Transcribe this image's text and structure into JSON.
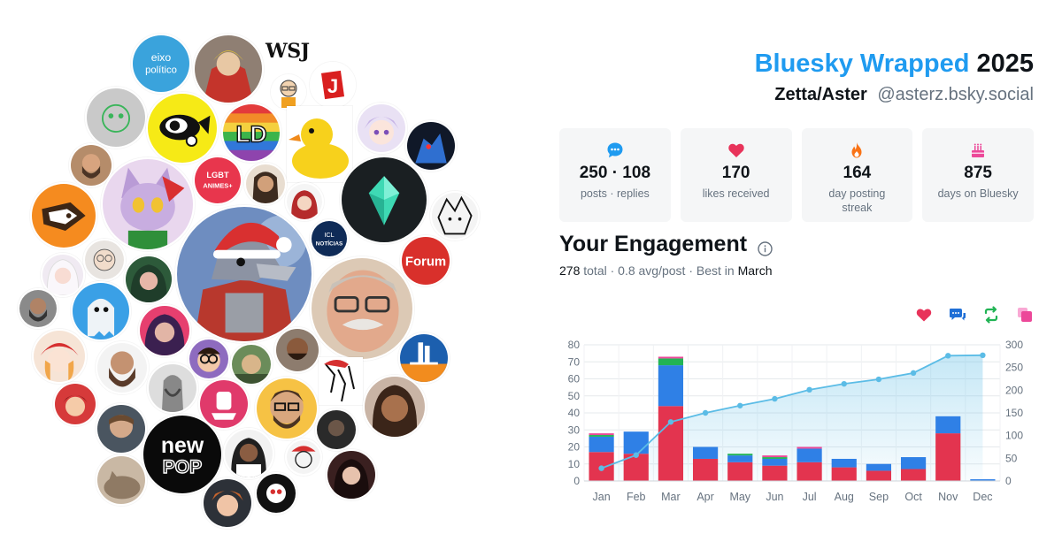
{
  "header": {
    "brand": "Bluesky Wrapped",
    "year": "2025",
    "display_name": "Zetta/Aster",
    "handle": "@asterz.bsky.social"
  },
  "stats": [
    {
      "icon": "chat-bubble-icon",
      "color": "#1f9bf0",
      "value": "250 · 108",
      "label": "posts · replies"
    },
    {
      "icon": "heart-icon",
      "color": "#e8335a",
      "value": "170",
      "label": "likes received"
    },
    {
      "icon": "flame-icon",
      "color": "#f97316",
      "value": "164",
      "label": "day posting streak"
    },
    {
      "icon": "cake-icon",
      "color": "#ec4899",
      "value": "875",
      "label": "days on Bluesky"
    }
  ],
  "engagement": {
    "title": "Your Engagement",
    "total": "278",
    "total_word": "total",
    "avg": "0.8 avg/post",
    "best_prefix": "Best in",
    "best_month": "March",
    "legend_icons": [
      {
        "icon": "heart-icon",
        "color": "#e8335a"
      },
      {
        "icon": "reply-icon",
        "color": "#1f6fd6"
      },
      {
        "icon": "repost-icon",
        "color": "#22c55e"
      },
      {
        "icon": "quote-icon",
        "color": "#ec4899"
      }
    ]
  },
  "avatars": {
    "logo_text": "eixo\npolitico",
    "wsj": "WSJ",
    "lgbt": "LGBT\nANIMES+",
    "noticias": "ICL\nNOTÍCIAS",
    "forum": "Forum",
    "newpop": "new\nPOP"
  },
  "chart_data": {
    "type": "bar",
    "categories": [
      "Jan",
      "Feb",
      "Mar",
      "Apr",
      "May",
      "Jun",
      "Jul",
      "Aug",
      "Sep",
      "Oct",
      "Nov",
      "Dec"
    ],
    "series": [
      {
        "values": [
          17,
          16,
          44,
          13,
          11,
          9,
          11,
          8,
          6,
          7,
          28,
          0
        ],
        "color": "#e3344f"
      },
      {
        "values": [
          9,
          13,
          24,
          7,
          4,
          4,
          8,
          5,
          4,
          7,
          10,
          1
        ],
        "color": "#2f80e6"
      },
      {
        "values": [
          1,
          0,
          4,
          0,
          1,
          1,
          0,
          0,
          0,
          0,
          0,
          0
        ],
        "color": "#22b455"
      },
      {
        "values": [
          1,
          0,
          1,
          0,
          0,
          1,
          1,
          0,
          0,
          0,
          0,
          0
        ],
        "color": "#ec4899"
      }
    ],
    "cumulative": [
      28,
      57,
      130,
      150,
      166,
      181,
      201,
      214,
      224,
      238,
      276,
      277
    ],
    "ylim": [
      0,
      80
    ],
    "yticks": [
      0,
      10,
      20,
      30,
      40,
      50,
      60,
      70,
      80
    ],
    "y2lim": [
      0,
      300
    ],
    "y2ticks": [
      0,
      50,
      100,
      150,
      200,
      250,
      300
    ],
    "grid": true,
    "line_color": "#5bbce6"
  }
}
